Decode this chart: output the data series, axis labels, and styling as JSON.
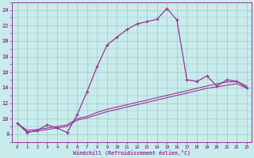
{
  "xlabel": "Windchill (Refroidissement éolien,°C)",
  "bg_color": "#c8ecec",
  "line_color": "#993399",
  "grid_color": "#99bbbb",
  "x_data": [
    0,
    1,
    2,
    3,
    4,
    5,
    6,
    7,
    8,
    9,
    10,
    11,
    12,
    13,
    14,
    15,
    16,
    17,
    18,
    19,
    20,
    21,
    22,
    23
  ],
  "y_main": [
    9.4,
    8.2,
    8.5,
    9.2,
    8.8,
    8.2,
    10.5,
    13.5,
    16.7,
    19.5,
    20.5,
    21.5,
    22.2,
    22.5,
    22.8,
    24.2,
    22.7,
    15.0,
    14.8,
    15.5,
    14.2,
    15.0,
    14.8,
    14.0
  ],
  "y_reg1": [
    9.4,
    8.5,
    8.6,
    8.8,
    9.0,
    9.2,
    10.0,
    10.3,
    10.8,
    11.2,
    11.5,
    11.8,
    12.1,
    12.4,
    12.7,
    13.0,
    13.3,
    13.6,
    13.9,
    14.2,
    14.5,
    14.7,
    14.8,
    14.2
  ],
  "y_reg2": [
    9.4,
    8.3,
    8.4,
    8.6,
    8.8,
    9.0,
    9.8,
    10.1,
    10.5,
    10.9,
    11.2,
    11.5,
    11.8,
    12.1,
    12.4,
    12.7,
    13.0,
    13.3,
    13.6,
    13.9,
    14.1,
    14.3,
    14.5,
    13.9
  ],
  "xlim": [
    -0.5,
    23.5
  ],
  "ylim": [
    7.0,
    25.0
  ],
  "yticks": [
    8,
    10,
    12,
    14,
    16,
    18,
    20,
    22,
    24
  ],
  "xticks": [
    0,
    1,
    2,
    3,
    4,
    5,
    6,
    7,
    8,
    9,
    10,
    11,
    12,
    13,
    14,
    15,
    16,
    17,
    18,
    19,
    20,
    21,
    22,
    23
  ]
}
